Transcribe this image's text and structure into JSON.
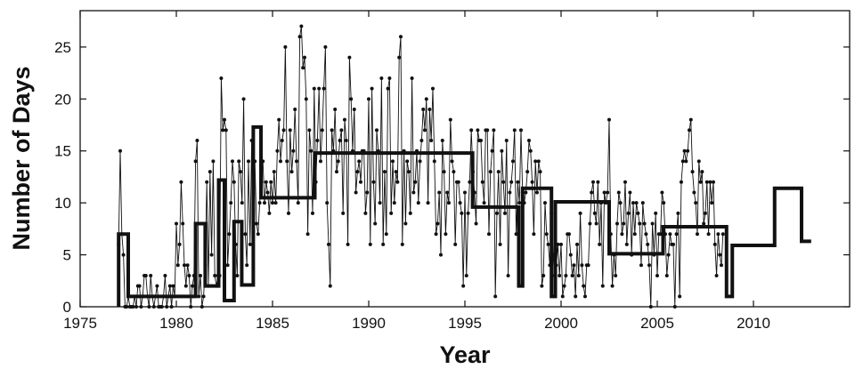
{
  "chart_data": {
    "type": "line",
    "title": "",
    "xlabel": "Year",
    "ylabel": "Number of Days",
    "xlim": [
      1975,
      2015
    ],
    "ylim": [
      0,
      28.5
    ],
    "xticks": [
      1975,
      1980,
      1985,
      1990,
      1995,
      2000,
      2005,
      2010
    ],
    "yticks": [
      0,
      5,
      10,
      15,
      20,
      25
    ],
    "grid": false,
    "legend": "none",
    "colors": {
      "line": "#111111",
      "axis": "#111111",
      "background": "#ffffff"
    },
    "series": [
      {
        "kind": "monthly-counts",
        "start": 1977.0,
        "step": 0.08333,
        "values": [
          6,
          15,
          7,
          5,
          0,
          0,
          1,
          0,
          0,
          0,
          1,
          0,
          2,
          2,
          0,
          1,
          3,
          3,
          1,
          0,
          3,
          1,
          0,
          1,
          2,
          0,
          0,
          0,
          1,
          3,
          0,
          1,
          2,
          0,
          2,
          1,
          8,
          4,
          6,
          12,
          8,
          4,
          2,
          4,
          3,
          0,
          2,
          3,
          14,
          16,
          1,
          3,
          0,
          1,
          4,
          12,
          2,
          13,
          5,
          14,
          3,
          2,
          3,
          3,
          22,
          17,
          18,
          17,
          4,
          7,
          10,
          14,
          12,
          6,
          3,
          14,
          13,
          10,
          20,
          7,
          4,
          14,
          6,
          16,
          13,
          14,
          8,
          7,
          10,
          12,
          14,
          10,
          12,
          11,
          9,
          12,
          10,
          13,
          10,
          15,
          18,
          14,
          16,
          17,
          25,
          14,
          9,
          17,
          13,
          15,
          19,
          14,
          10,
          26,
          27,
          23,
          24,
          20,
          7,
          17,
          15,
          9,
          21,
          12,
          16,
          21,
          14,
          17,
          21,
          25,
          10,
          6,
          2,
          17,
          15,
          19,
          13,
          14,
          16,
          17,
          9,
          18,
          16,
          6,
          24,
          20,
          15,
          19,
          11,
          13,
          14,
          12,
          15,
          15,
          9,
          11,
          20,
          6,
          21,
          12,
          8,
          17,
          15,
          10,
          22,
          6,
          13,
          7,
          21,
          22,
          9,
          14,
          10,
          13,
          12,
          24,
          26,
          6,
          15,
          8,
          14,
          13,
          9,
          22,
          11,
          12,
          15,
          10,
          14,
          16,
          19,
          17,
          20,
          10,
          19,
          16,
          21,
          14,
          7,
          8,
          11,
          5,
          16,
          13,
          7,
          11,
          10,
          18,
          14,
          13,
          6,
          12,
          12,
          10,
          9,
          2,
          11,
          3,
          9,
          12,
          17,
          13,
          11,
          8,
          17,
          16,
          16,
          12,
          10,
          17,
          17,
          7,
          13,
          15,
          17,
          1,
          9,
          13,
          6,
          15,
          12,
          9,
          16,
          3,
          11,
          12,
          14,
          17,
          7,
          12,
          10,
          17,
          11,
          10,
          11,
          13,
          16,
          15,
          12,
          7,
          14,
          11,
          14,
          13,
          2,
          3,
          10,
          7,
          6,
          4,
          9,
          5,
          3,
          4,
          6,
          3,
          6,
          1,
          2,
          3,
          7,
          7,
          5,
          3,
          4,
          1,
          6,
          3,
          9,
          4,
          2,
          1,
          4,
          4,
          8,
          11,
          12,
          9,
          8,
          12,
          6,
          10,
          2,
          11,
          10,
          11,
          18,
          7,
          2,
          5,
          3,
          8,
          11,
          10,
          7,
          8,
          12,
          6,
          9,
          11,
          5,
          10,
          7,
          10,
          9,
          8,
          4,
          10,
          8,
          7,
          6,
          4,
          0,
          8,
          5,
          9,
          3,
          7,
          7,
          11,
          10,
          7,
          3,
          5,
          7,
          6,
          6,
          0,
          7,
          9,
          1,
          12,
          14,
          15,
          14,
          15,
          17,
          18,
          13,
          11,
          10,
          7,
          14,
          12,
          13,
          8,
          9,
          12,
          7,
          12,
          10,
          12,
          6,
          3,
          7,
          5,
          4,
          7
        ]
      },
      {
        "kind": "segment-means",
        "segments": [
          {
            "start": 1977.0,
            "end": 1977.5,
            "value": 7
          },
          {
            "start": 1977.5,
            "end": 1981.0,
            "value": 1
          },
          {
            "start": 1981.0,
            "end": 1981.5,
            "value": 8
          },
          {
            "start": 1981.5,
            "end": 1982.2,
            "value": 2
          },
          {
            "start": 1982.2,
            "end": 1982.5,
            "value": 12.2
          },
          {
            "start": 1982.5,
            "end": 1983.0,
            "value": 0.6
          },
          {
            "start": 1983.0,
            "end": 1983.4,
            "value": 8.2
          },
          {
            "start": 1983.4,
            "end": 1984.0,
            "value": 2.1
          },
          {
            "start": 1984.0,
            "end": 1984.4,
            "value": 17.3
          },
          {
            "start": 1984.4,
            "end": 1987.2,
            "value": 10.5
          },
          {
            "start": 1987.2,
            "end": 1995.4,
            "value": 14.8
          },
          {
            "start": 1995.4,
            "end": 1997.8,
            "value": 9.6
          },
          {
            "start": 1997.8,
            "end": 1998.0,
            "value": 2
          },
          {
            "start": 1998.0,
            "end": 1999.5,
            "value": 11.4
          },
          {
            "start": 1999.5,
            "end": 1999.7,
            "value": 1
          },
          {
            "start": 1999.7,
            "end": 2002.5,
            "value": 10.1
          },
          {
            "start": 2002.5,
            "end": 2005.3,
            "value": 5.1
          },
          {
            "start": 2005.3,
            "end": 2008.6,
            "value": 7.7
          },
          {
            "start": 2008.6,
            "end": 2008.9,
            "value": 1
          },
          {
            "start": 2008.9,
            "end": 2011.1,
            "value": 5.9
          },
          {
            "start": 2011.1,
            "end": 2012.5,
            "value": 11.4
          },
          {
            "start": 2012.5,
            "end": 2013.0,
            "value": 6.3
          }
        ]
      }
    ]
  }
}
